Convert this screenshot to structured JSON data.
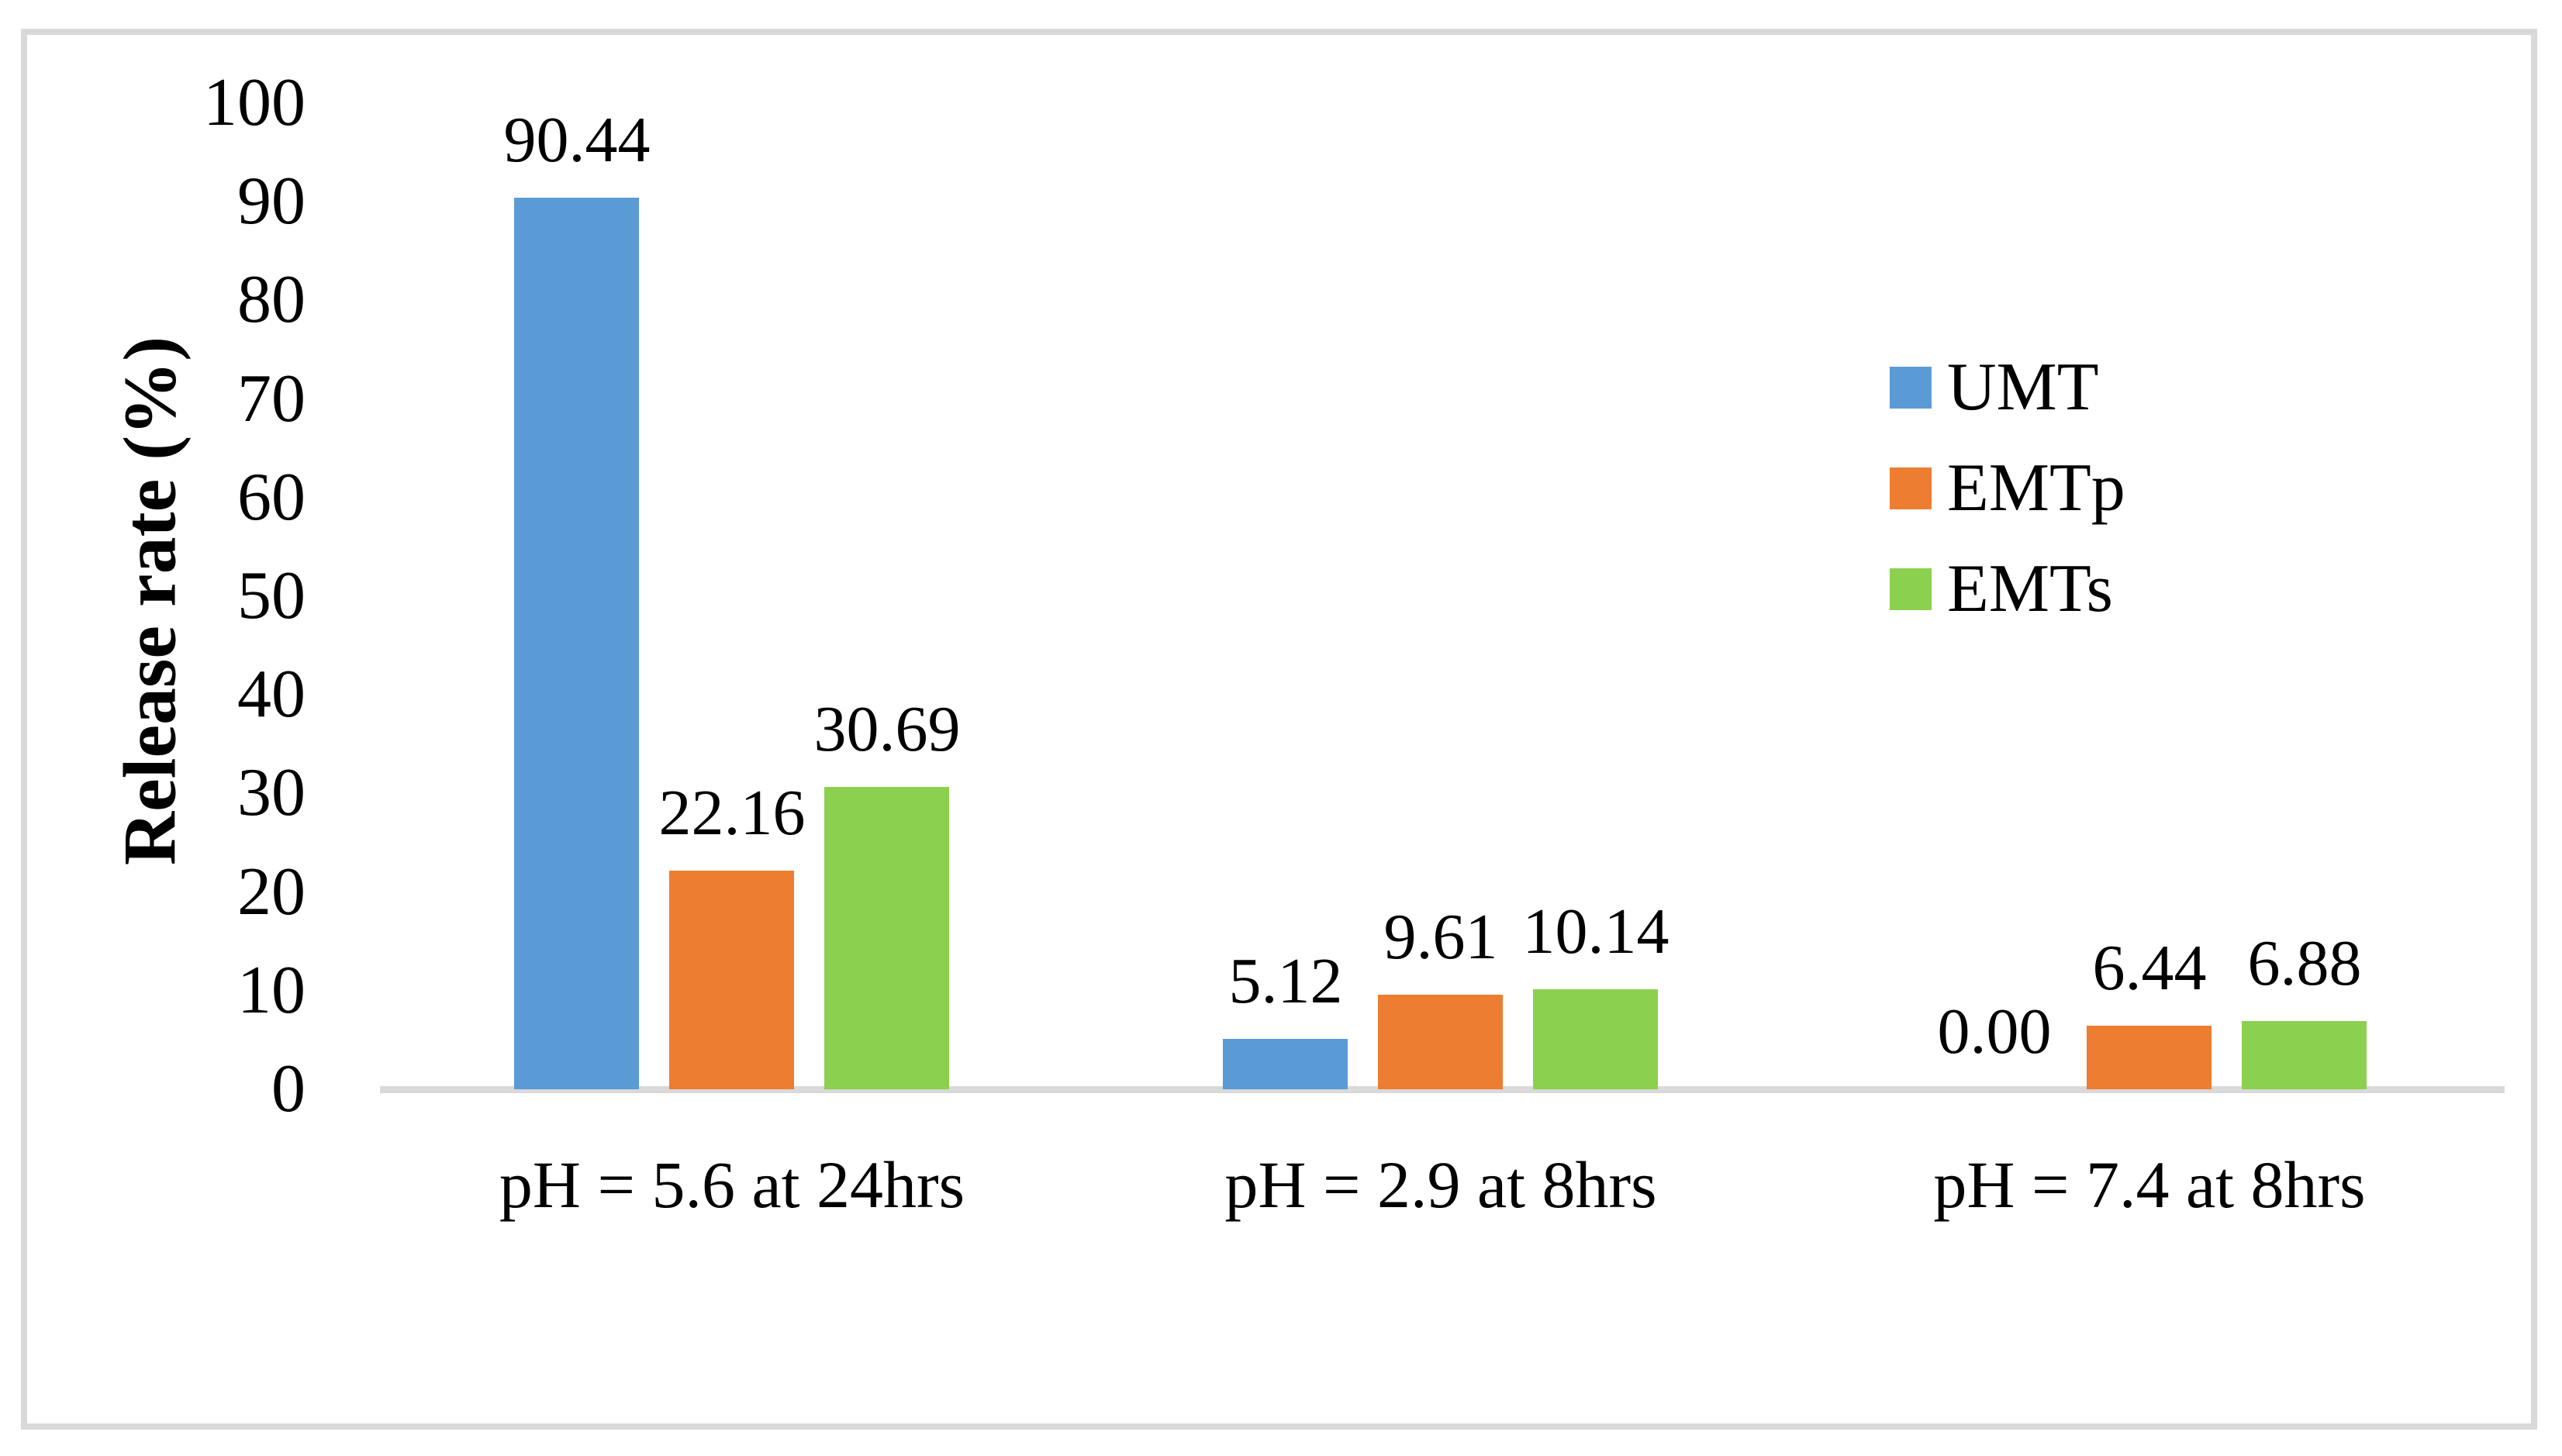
{
  "chart_data": {
    "type": "bar",
    "title": "",
    "categories": [
      "pH = 5.6 at 24hrs",
      "pH = 2.9 at 8hrs",
      "pH = 7.4 at 8hrs"
    ],
    "series": [
      {
        "name": "UMT",
        "color": "#5B9BD5",
        "values": [
          90.44,
          5.12,
          0.0
        ],
        "labels": [
          "90.44",
          "5.12",
          "0.00"
        ]
      },
      {
        "name": "EMTp",
        "color": "#ED7D31",
        "values": [
          22.16,
          9.61,
          6.44
        ],
        "labels": [
          "22.16",
          "9.61",
          "6.44"
        ]
      },
      {
        "name": "EMTs",
        "color": "#8CD04F",
        "values": [
          30.69,
          10.14,
          6.88
        ],
        "labels": [
          "30.69",
          "10.14",
          "6.88"
        ]
      }
    ],
    "xlabel": "",
    "ylabel": "Release rate (%)",
    "ylim": [
      0,
      100
    ],
    "yticks": [
      0,
      10,
      20,
      30,
      40,
      50,
      60,
      70,
      80,
      90,
      100
    ],
    "grid": false,
    "legend_position": "right-middle",
    "data_labels": true
  },
  "colors": {
    "axis_line": "#D9D9D9",
    "frame_border": "#D9D9D9",
    "background": "#FFFFFF",
    "text": "#000000"
  }
}
